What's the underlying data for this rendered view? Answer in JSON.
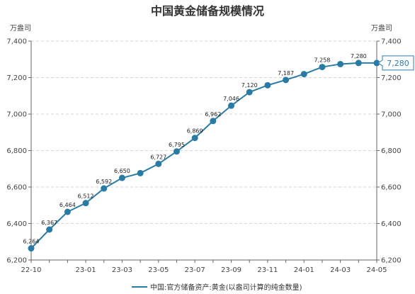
{
  "chart_data": {
    "type": "line",
    "title": "中国黄金储备规模情况",
    "y_unit_left": "万盎司",
    "y_unit_right": "万盎司",
    "x": [
      "22-10",
      "22-11",
      "22-12",
      "23-01",
      "23-02",
      "23-03",
      "23-04",
      "23-05",
      "23-06",
      "23-07",
      "23-08",
      "23-09",
      "23-10",
      "23-11",
      "23-12",
      "24-01",
      "24-02",
      "24-03",
      "24-04",
      "24-05"
    ],
    "x_tick_labels": [
      "22-10",
      "23-01",
      "23-03",
      "23-05",
      "23-07",
      "23-09",
      "23-11",
      "24-01",
      "24-03",
      "24-05"
    ],
    "series": [
      {
        "name": "中国:官方储备资产:黄金(以盎司计算的纯金数量)",
        "color": "#2a7ba3",
        "values": [
          6264,
          6367,
          6464,
          6512,
          6592,
          6650,
          6676,
          6727,
          6795,
          6869,
          6962,
          7046,
          7120,
          7158,
          7187,
          7219,
          7258,
          7274,
          7280,
          7280
        ],
        "labels": [
          "6,264",
          "6,367",
          "6,464",
          "6,512",
          "6,592",
          "6,650",
          "",
          "6,727",
          "6,795",
          "6,869",
          "6,962",
          "7,046",
          "7,120",
          "",
          "7,187",
          "",
          "7,258",
          "",
          "7,280",
          ""
        ]
      }
    ],
    "ylim": [
      6200,
      7400
    ],
    "y_ticks": [
      "6,200",
      "6,400",
      "6,600",
      "6,800",
      "7,000",
      "7,200",
      "7,400"
    ],
    "callout": "7,280",
    "grid": "horizontal-dashed",
    "legend": "bottom-center"
  }
}
